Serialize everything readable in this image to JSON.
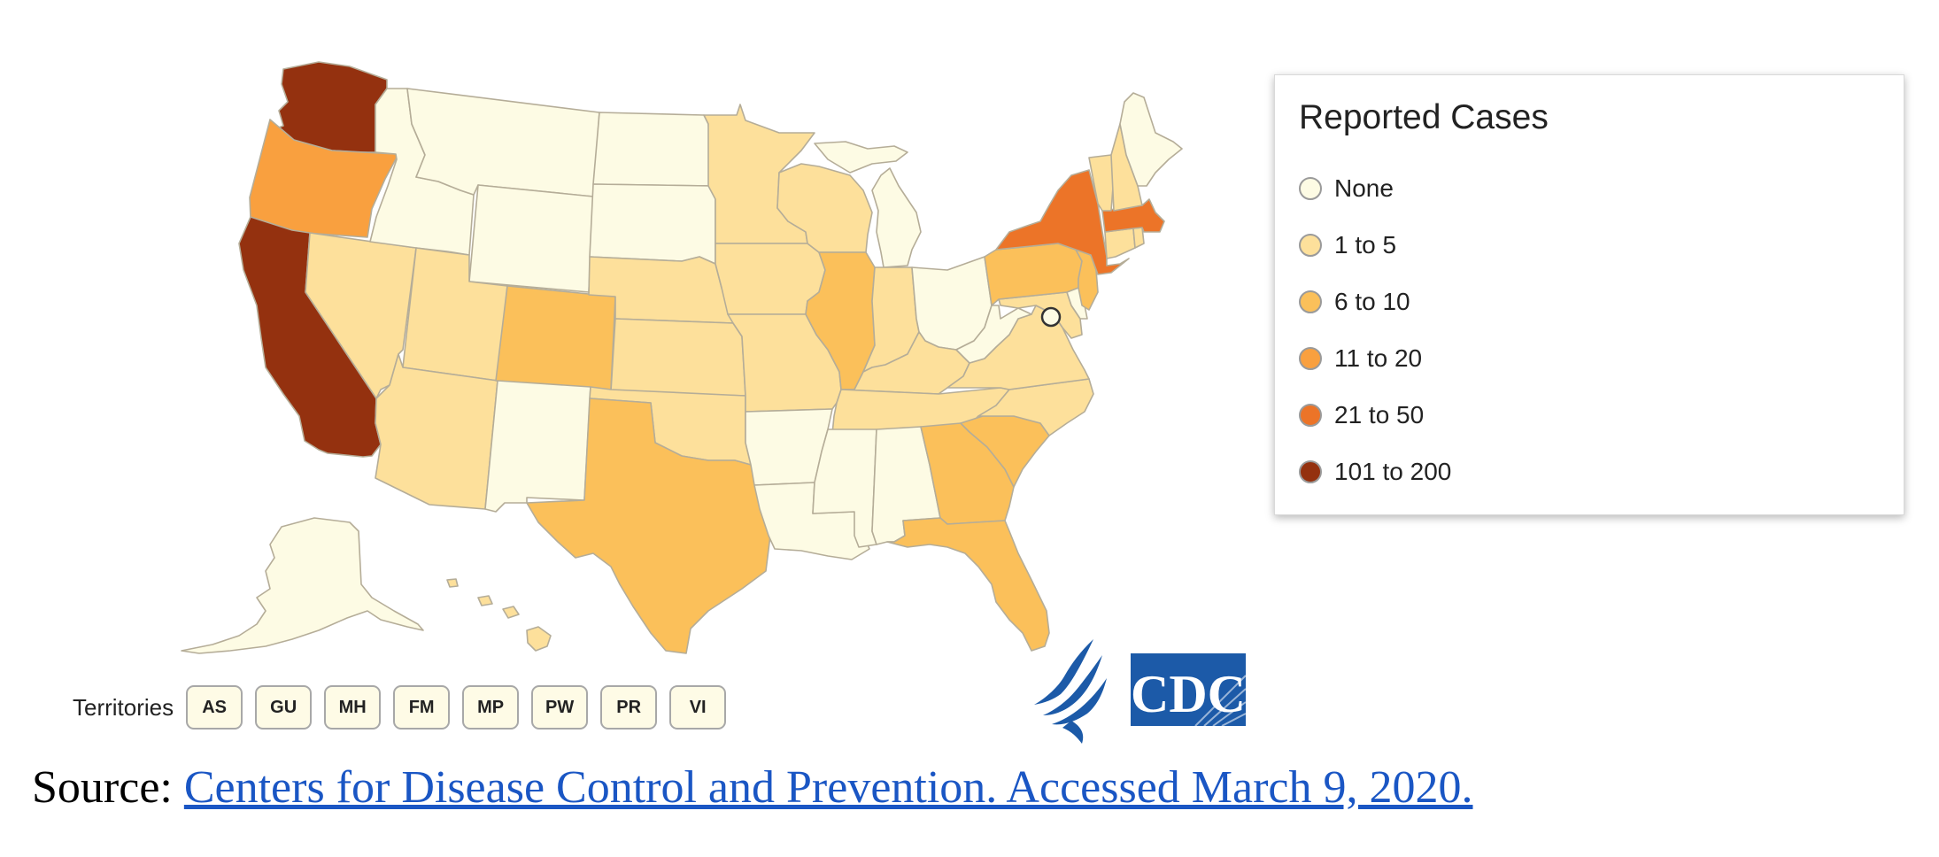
{
  "colors": {
    "none": "#fdfbe4",
    "1 to 5": "#fde09b",
    "6 to 10": "#fbc05a",
    "11 to 20": "#f9a03f",
    "21 to 50": "#ec7428",
    "101 to 200": "#94310f"
  },
  "map": {
    "states": [
      {
        "id": "WA",
        "category": "101 to 200"
      },
      {
        "id": "OR",
        "category": "11 to 20"
      },
      {
        "id": "CA",
        "category": "101 to 200"
      },
      {
        "id": "NV",
        "category": "1 to 5"
      },
      {
        "id": "ID",
        "category": "None"
      },
      {
        "id": "MT",
        "category": "None"
      },
      {
        "id": "WY",
        "category": "None"
      },
      {
        "id": "UT",
        "category": "1 to 5"
      },
      {
        "id": "AZ",
        "category": "1 to 5"
      },
      {
        "id": "CO",
        "category": "6 to 10"
      },
      {
        "id": "NM",
        "category": "None"
      },
      {
        "id": "ND",
        "category": "None"
      },
      {
        "id": "SD",
        "category": "None"
      },
      {
        "id": "NE",
        "category": "1 to 5"
      },
      {
        "id": "KS",
        "category": "1 to 5"
      },
      {
        "id": "OK",
        "category": "1 to 5"
      },
      {
        "id": "TX",
        "category": "6 to 10"
      },
      {
        "id": "MN",
        "category": "1 to 5"
      },
      {
        "id": "IA",
        "category": "1 to 5"
      },
      {
        "id": "MO",
        "category": "1 to 5"
      },
      {
        "id": "AR",
        "category": "None"
      },
      {
        "id": "LA",
        "category": "None"
      },
      {
        "id": "WI",
        "category": "1 to 5"
      },
      {
        "id": "IL",
        "category": "6 to 10"
      },
      {
        "id": "MI",
        "category": "None"
      },
      {
        "id": "IN",
        "category": "1 to 5"
      },
      {
        "id": "OH",
        "category": "None"
      },
      {
        "id": "KY",
        "category": "1 to 5"
      },
      {
        "id": "TN",
        "category": "1 to 5"
      },
      {
        "id": "MS",
        "category": "None"
      },
      {
        "id": "AL",
        "category": "None"
      },
      {
        "id": "GA",
        "category": "6 to 10"
      },
      {
        "id": "FL",
        "category": "6 to 10"
      },
      {
        "id": "SC",
        "category": "6 to 10"
      },
      {
        "id": "NC",
        "category": "1 to 5"
      },
      {
        "id": "VA",
        "category": "1 to 5"
      },
      {
        "id": "WV",
        "category": "None"
      },
      {
        "id": "PA",
        "category": "6 to 10"
      },
      {
        "id": "NY",
        "category": "21 to 50"
      },
      {
        "id": "NJ",
        "category": "6 to 10"
      },
      {
        "id": "MD",
        "category": "1 to 5"
      },
      {
        "id": "DE",
        "category": "None"
      },
      {
        "id": "DC",
        "category": "None"
      },
      {
        "id": "CT",
        "category": "1 to 5"
      },
      {
        "id": "RI",
        "category": "1 to 5"
      },
      {
        "id": "MA",
        "category": "21 to 50"
      },
      {
        "id": "VT",
        "category": "1 to 5"
      },
      {
        "id": "NH",
        "category": "1 to 5"
      },
      {
        "id": "ME",
        "category": "None"
      },
      {
        "id": "AK",
        "category": "None"
      },
      {
        "id": "HI",
        "category": "1 to 5"
      }
    ]
  },
  "legend": {
    "title": "Reported Cases",
    "items": [
      {
        "label": "None",
        "color": "#fdfbe4"
      },
      {
        "label": "1 to 5",
        "color": "#fde09b"
      },
      {
        "label": "6 to 10",
        "color": "#fbc05a"
      },
      {
        "label": "11 to 20",
        "color": "#f9a03f"
      },
      {
        "label": "21 to 50",
        "color": "#ec7428"
      },
      {
        "label": "101 to 200",
        "color": "#94310f"
      }
    ]
  },
  "territories": {
    "label": "Territories",
    "buttons": [
      "AS",
      "GU",
      "MH",
      "FM",
      "MP",
      "PW",
      "PR",
      "VI"
    ]
  },
  "logo": {
    "text": "CDC",
    "icon": "hhs-eagle-icon",
    "color": "#1c5aa8"
  },
  "source": {
    "prefix": "Source: ",
    "link_text": "Centers for Disease Control and Prevention. Accessed March 9, 2020."
  }
}
